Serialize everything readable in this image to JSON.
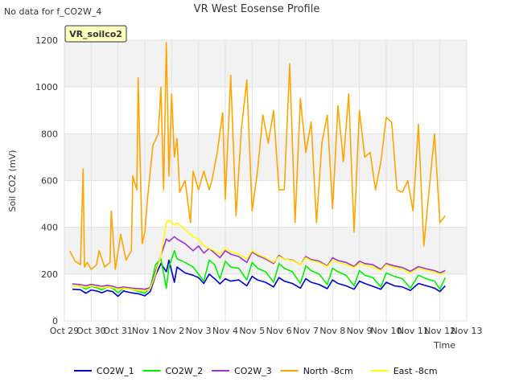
{
  "header": {
    "nodata_note": "No data for f_CO2W_4",
    "site_badge": "VR_soilco2"
  },
  "chart_data": {
    "type": "line",
    "title": "VR West Eosense Profile",
    "xlabel": "Time",
    "ylabel": "Soil CO2 (mV)",
    "ylim": [
      0,
      1200
    ],
    "yticks": [
      0,
      200,
      400,
      600,
      800,
      1000,
      1200
    ],
    "xlim": [
      0,
      15
    ],
    "xticks": [
      {
        "x": 0,
        "label": "Oct 29"
      },
      {
        "x": 1,
        "label": "Oct 30"
      },
      {
        "x": 2,
        "label": "Oct 31"
      },
      {
        "x": 3,
        "label": "Nov 1"
      },
      {
        "x": 4,
        "label": "Nov 2"
      },
      {
        "x": 5,
        "label": "Nov 3"
      },
      {
        "x": 6,
        "label": "Nov 4"
      },
      {
        "x": 7,
        "label": "Nov 5"
      },
      {
        "x": 8,
        "label": "Nov 6"
      },
      {
        "x": 9,
        "label": "Nov 7"
      },
      {
        "x": 10,
        "label": "Nov 8"
      },
      {
        "x": 11,
        "label": "Nov 9"
      },
      {
        "x": 12,
        "label": "Nov 10"
      },
      {
        "x": 13,
        "label": "Nov 11"
      },
      {
        "x": 14,
        "label": "Nov 12"
      },
      {
        "x": 15,
        "label": "Nov 13"
      }
    ],
    "x_units": "days after Oct 29 00:00",
    "grid": true,
    "legend_position": "bottom",
    "series": [
      {
        "name": "CO2W_1",
        "color": "#0000cc",
        "x": [
          0.3,
          0.6,
          0.8,
          1.0,
          1.2,
          1.4,
          1.6,
          1.8,
          2.0,
          2.2,
          2.5,
          2.8,
          3.0,
          3.2,
          3.4,
          3.6,
          3.8,
          3.9,
          4.1,
          4.2,
          4.5,
          4.8,
          5.0,
          5.2,
          5.4,
          5.6,
          5.8,
          6.0,
          6.2,
          6.5,
          6.8,
          7.0,
          7.2,
          7.5,
          7.8,
          8.0,
          8.2,
          8.5,
          8.8,
          9.0,
          9.2,
          9.5,
          9.8,
          10.0,
          10.2,
          10.5,
          10.8,
          11.0,
          11.2,
          11.5,
          11.8,
          12.0,
          12.3,
          12.6,
          12.9,
          13.2,
          13.5,
          13.8,
          14.0,
          14.2
        ],
        "values": [
          135,
          133,
          118,
          132,
          128,
          120,
          130,
          125,
          105,
          128,
          120,
          115,
          107,
          125,
          195,
          245,
          210,
          260,
          165,
          230,
          205,
          195,
          185,
          160,
          200,
          180,
          158,
          180,
          170,
          175,
          150,
          190,
          175,
          165,
          145,
          185,
          170,
          160,
          140,
          180,
          165,
          155,
          138,
          175,
          160,
          150,
          135,
          170,
          160,
          148,
          135,
          165,
          150,
          145,
          130,
          160,
          150,
          140,
          125,
          150
        ]
      },
      {
        "name": "CO2W_2",
        "color": "#00ee00",
        "x": [
          0.3,
          0.6,
          0.8,
          1.0,
          1.2,
          1.4,
          1.6,
          1.8,
          2.0,
          2.2,
          2.5,
          2.8,
          3.0,
          3.2,
          3.4,
          3.6,
          3.8,
          3.9,
          4.1,
          4.2,
          4.5,
          4.8,
          5.0,
          5.2,
          5.4,
          5.6,
          5.8,
          6.0,
          6.2,
          6.5,
          6.8,
          7.0,
          7.2,
          7.5,
          7.8,
          8.0,
          8.2,
          8.5,
          8.8,
          9.0,
          9.2,
          9.5,
          9.8,
          10.0,
          10.2,
          10.5,
          10.8,
          11.0,
          11.2,
          11.5,
          11.8,
          12.0,
          12.3,
          12.6,
          12.9,
          13.2,
          13.5,
          13.8,
          14.0,
          14.2
        ],
        "values": [
          150,
          148,
          135,
          148,
          142,
          132,
          145,
          140,
          120,
          140,
          135,
          125,
          118,
          140,
          240,
          265,
          140,
          230,
          300,
          265,
          250,
          230,
          200,
          170,
          260,
          240,
          180,
          255,
          230,
          225,
          175,
          250,
          225,
          210,
          165,
          245,
          225,
          210,
          160,
          235,
          215,
          200,
          155,
          225,
          210,
          195,
          150,
          215,
          195,
          185,
          145,
          205,
          190,
          180,
          140,
          195,
          180,
          170,
          135,
          185
        ]
      },
      {
        "name": "CO2W_3",
        "color": "#9933cc",
        "x": [
          0.3,
          0.6,
          0.8,
          1.0,
          1.2,
          1.4,
          1.6,
          1.8,
          2.0,
          2.2,
          2.5,
          2.8,
          3.0,
          3.2,
          3.4,
          3.6,
          3.8,
          3.9,
          4.1,
          4.2,
          4.5,
          4.8,
          5.0,
          5.2,
          5.4,
          5.6,
          5.8,
          6.0,
          6.2,
          6.5,
          6.8,
          7.0,
          7.2,
          7.5,
          7.8,
          8.0,
          8.2,
          8.5,
          8.8,
          9.0,
          9.2,
          9.5,
          9.8,
          10.0,
          10.2,
          10.5,
          10.8,
          11.0,
          11.2,
          11.5,
          11.8,
          12.0,
          12.3,
          12.6,
          12.9,
          13.2,
          13.5,
          13.8,
          14.0,
          14.2
        ],
        "values": [
          158,
          155,
          150,
          156,
          152,
          148,
          152,
          148,
          140,
          145,
          140,
          138,
          135,
          142,
          210,
          280,
          350,
          340,
          360,
          350,
          330,
          300,
          320,
          290,
          310,
          290,
          270,
          300,
          285,
          275,
          250,
          295,
          280,
          265,
          245,
          280,
          265,
          260,
          240,
          275,
          262,
          255,
          235,
          270,
          258,
          250,
          232,
          255,
          245,
          240,
          220,
          245,
          235,
          228,
          212,
          232,
          222,
          215,
          205,
          215
        ]
      },
      {
        "name": "North -8cm",
        "color": "#ffa500",
        "x": [
          0.2,
          0.4,
          0.6,
          0.7,
          0.75,
          0.85,
          1.0,
          1.2,
          1.3,
          1.5,
          1.7,
          1.75,
          1.9,
          2.1,
          2.3,
          2.5,
          2.55,
          2.7,
          2.75,
          2.9,
          3.0,
          3.1,
          3.3,
          3.5,
          3.6,
          3.7,
          3.8,
          3.9,
          4.0,
          4.1,
          4.2,
          4.3,
          4.5,
          4.7,
          4.8,
          5.0,
          5.2,
          5.4,
          5.5,
          5.7,
          5.9,
          6.0,
          6.2,
          6.4,
          6.6,
          6.8,
          7.0,
          7.2,
          7.4,
          7.6,
          7.8,
          8.0,
          8.2,
          8.4,
          8.6,
          8.8,
          9.0,
          9.2,
          9.4,
          9.6,
          9.8,
          10.0,
          10.2,
          10.4,
          10.6,
          10.8,
          11.0,
          11.2,
          11.4,
          11.6,
          11.8,
          12.0,
          12.2,
          12.4,
          12.6,
          12.8,
          13.0,
          13.2,
          13.4,
          13.6,
          13.8,
          14.0,
          14.2
        ],
        "values": [
          300,
          255,
          240,
          650,
          230,
          250,
          220,
          240,
          300,
          230,
          250,
          470,
          220,
          370,
          260,
          300,
          620,
          560,
          1040,
          330,
          380,
          520,
          750,
          800,
          1000,
          560,
          1190,
          620,
          970,
          700,
          780,
          550,
          600,
          420,
          640,
          560,
          640,
          560,
          600,
          720,
          890,
          520,
          1050,
          450,
          820,
          1030,
          470,
          640,
          880,
          760,
          900,
          560,
          560,
          1100,
          420,
          950,
          720,
          850,
          420,
          760,
          880,
          480,
          920,
          680,
          970,
          380,
          900,
          700,
          720,
          560,
          680,
          870,
          850,
          560,
          550,
          600,
          470,
          840,
          320,
          560,
          800,
          420,
          450
        ]
      },
      {
        "name": "East -8cm",
        "color": "#ffff00",
        "x": [
          0.3,
          0.6,
          0.8,
          1.0,
          1.2,
          1.4,
          1.6,
          1.8,
          2.0,
          2.2,
          2.5,
          2.8,
          3.0,
          3.2,
          3.4,
          3.6,
          3.8,
          3.9,
          4.1,
          4.2,
          4.5,
          4.8,
          5.0,
          5.2,
          5.4,
          5.6,
          5.8,
          6.0,
          6.2,
          6.5,
          6.8,
          7.0,
          7.2,
          7.5,
          7.8,
          8.0,
          8.2,
          8.5,
          8.8,
          9.0,
          9.2,
          9.5,
          9.8,
          10.0,
          10.2,
          10.5,
          10.8,
          11.0,
          11.2,
          11.5,
          11.8,
          12.0,
          12.3,
          12.6,
          12.9,
          13.2,
          13.5,
          13.8,
          14.0,
          14.2
        ],
        "values": [
          150,
          148,
          142,
          150,
          146,
          140,
          145,
          142,
          135,
          140,
          135,
          130,
          128,
          138,
          200,
          280,
          420,
          430,
          410,
          420,
          390,
          360,
          350,
          320,
          310,
          300,
          285,
          310,
          295,
          285,
          265,
          300,
          285,
          270,
          250,
          275,
          265,
          258,
          240,
          270,
          258,
          250,
          232,
          260,
          250,
          242,
          228,
          245,
          238,
          230,
          215,
          240,
          228,
          220,
          205,
          225,
          215,
          208,
          200,
          205
        ]
      }
    ]
  }
}
